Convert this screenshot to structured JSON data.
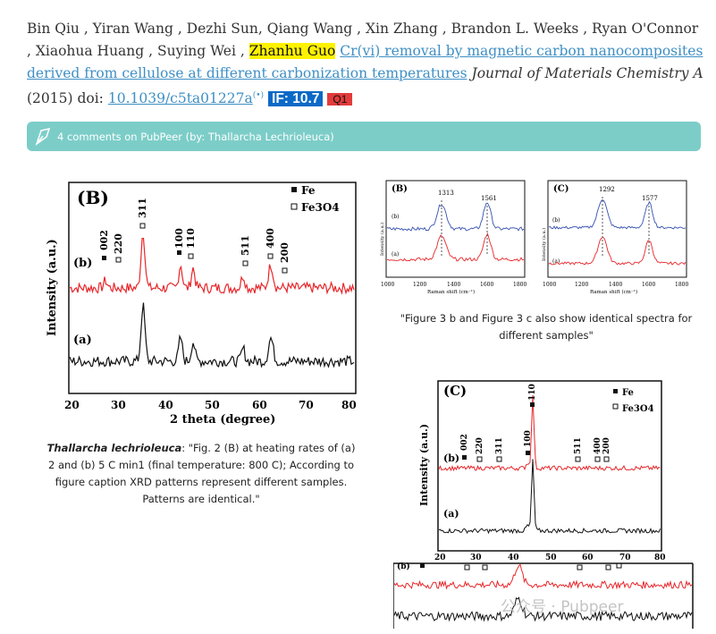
{
  "citation": {
    "authors": "Bin Qiu , Yiran Wang , Dezhi Sun, Qiang Wang , Xin Zhang , Brandon L. Weeks , Ryan O'Connor , Xiaohua Huang , Suying Wei ,",
    "highlighted_author": "Zhanhu Guo",
    "title_link": "Cr(vi) removal by magnetic carbon nanocomposites derived from cellulose at different carbonization temperatures",
    "journal": "Journal of Materials Chemistry A",
    "year": "(2015) doi:",
    "doi": "10.1039/c5ta01227a",
    "rss": "(•)",
    "impact_badge": "IF: 10.7",
    "quartile_badge": "Q1"
  },
  "pubpeer": {
    "label": "4 comments on PubPeer (by: Thallarcha Lechrioleuca)"
  },
  "figB": {
    "panel": "(B)",
    "legend_fe": "Fe",
    "legend_fe3o4": "Fe3O4",
    "ylabel": "Intensity (a.u.)",
    "xlabel": "2 theta (degree)",
    "xticks": [
      "20",
      "30",
      "40",
      "50",
      "60",
      "70",
      "80"
    ],
    "curve_a": "(a)",
    "curve_b": "(b)",
    "peaks": [
      "002",
      "220",
      "311",
      "100",
      "110",
      "511",
      "400",
      "200"
    ]
  },
  "raman": {
    "left_panel": "(B)",
    "right_panel": "(C)",
    "left_peaks": [
      "1313",
      "1561"
    ],
    "right_peaks": [
      "1292",
      "1577"
    ],
    "xlabel": "Raman shift (cm⁻¹)",
    "ylabel": "Intensity (a.u.)",
    "xticks": [
      "1000",
      "1200",
      "1400",
      "1600",
      "1800"
    ],
    "curve_a": "(a)",
    "curve_b": "(b)"
  },
  "caption_raman": "\"Figure 3 b and Figure 3 c also show identical spectra for different samples\"",
  "caption_main": {
    "author": "Thallarcha lechrioleuca",
    "text": ": \"Fig. 2 (B) at heating rates of (a) 2 and (b) 5 C min1 (final temperature: 800 C); According to figure caption XRD patterns represent different samples. Patterns are identical.\""
  },
  "figC": {
    "panel": "(C)",
    "legend_fe": "Fe",
    "legend_fe3o4": "Fe3O4",
    "ylabel": "Intensity (a.u.)",
    "xticks": [
      "20",
      "30",
      "40",
      "50",
      "60",
      "70",
      "80"
    ],
    "curve_a": "(a)",
    "curve_b": "(b)",
    "peaks": [
      "002",
      "220",
      "311",
      "100",
      "110",
      "511",
      "400",
      "200"
    ],
    "partial_label": "(b)"
  },
  "watermark": "公众号 · Pubpeer",
  "colors": {
    "red": "#e8262a",
    "black": "#111111",
    "blue": "#3450b0",
    "teal": "#7ccdc8"
  }
}
